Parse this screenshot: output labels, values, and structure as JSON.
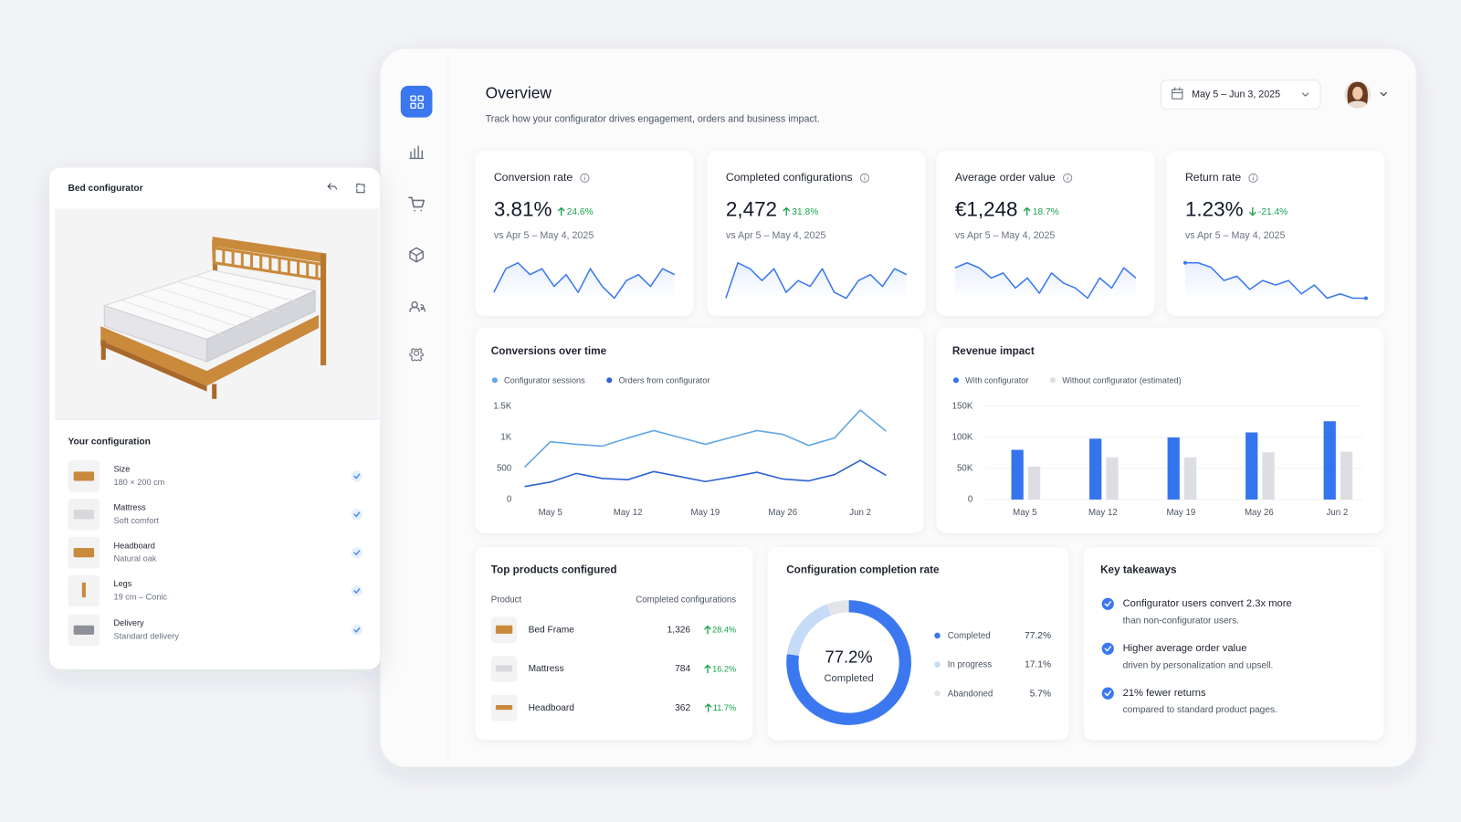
{
  "configurator": {
    "title": "Bed configurator",
    "section": "Your configuration",
    "items": [
      {
        "label": "Size",
        "value": "180 × 200 cm"
      },
      {
        "label": "Mattress",
        "value": "Soft comfort"
      },
      {
        "label": "Headboard",
        "value": "Natural oak"
      },
      {
        "label": "Legs",
        "value": "19 cm – Conic"
      },
      {
        "label": "Delivery",
        "value": "Standard delivery"
      }
    ]
  },
  "header": {
    "title": "Overview",
    "subtitle": "Track how your configurator drives engagement, orders and business impact.",
    "date_range": "May 5 – Jun 3, 2025"
  },
  "kpis": [
    {
      "label": "Conversion rate",
      "value": "3.81%",
      "change": "24.6%",
      "direction": "up",
      "comparison": "vs Apr 5 – May 4, 2025",
      "trend": [
        3,
        7,
        8,
        6,
        7,
        4,
        6,
        3,
        7,
        4,
        2,
        5,
        6,
        4,
        7,
        6
      ]
    },
    {
      "label": "Completed configurations",
      "value": "2,472",
      "change": "31.8%",
      "direction": "up",
      "comparison": "vs Apr 5 – May 4, 2025",
      "trend": [
        2,
        8,
        7,
        5,
        7,
        3,
        5,
        4,
        7,
        3,
        2,
        5,
        6,
        4,
        7,
        6
      ]
    },
    {
      "label": "Average order value",
      "value": "€1,248",
      "change": "18.7%",
      "direction": "up",
      "comparison": "vs Apr 5 – May 4, 2025",
      "trend": [
        7,
        8,
        7,
        5,
        6,
        3,
        5,
        2,
        6,
        4,
        3,
        1,
        5,
        3,
        7,
        5
      ]
    },
    {
      "label": "Return rate",
      "value": "1.23%",
      "change": "-21.4%",
      "direction": "down",
      "comparison": "vs Apr 5 – May 4, 2025",
      "trend": [
        8,
        8,
        7,
        4,
        5,
        2,
        4,
        3,
        4,
        1,
        3,
        0,
        1,
        0,
        0
      ]
    }
  ],
  "chart_data": [
    {
      "type": "line",
      "title": "Conversions over time",
      "categories": [
        null,
        "May 5",
        null,
        null,
        "May 12",
        null,
        null,
        "May 19",
        null,
        null,
        "May 26",
        null,
        null,
        "Jun 2",
        null
      ],
      "series": [
        {
          "name": "Configurator sessions",
          "color": "#62a8e5",
          "values": [
            520,
            930,
            890,
            860,
            990,
            1110,
            1000,
            890,
            1000,
            1110,
            1050,
            870,
            990,
            1440,
            1100
          ]
        },
        {
          "name": "Orders from configurator",
          "color": "#2f64d4",
          "values": [
            210,
            280,
            420,
            340,
            320,
            450,
            370,
            290,
            360,
            440,
            330,
            300,
            400,
            630,
            390
          ]
        }
      ],
      "ylim": [
        0,
        1500
      ],
      "yticks": [
        0,
        500,
        {
          "value": 1000,
          "label": "1K"
        },
        {
          "value": 1500,
          "label": "1.5K"
        }
      ],
      "grid": false
    },
    {
      "type": "bar",
      "title": "Revenue impact",
      "categories": [
        "May 5",
        "May 12",
        "May 19",
        "May 26",
        "Jun 2"
      ],
      "series": [
        {
          "name": "With configurator",
          "color": "#3574ef",
          "values": [
            80000,
            98000,
            100000,
            108000,
            126000
          ]
        },
        {
          "name": "Without configurator (estimated)",
          "color": "#dcdee3",
          "values": [
            53000,
            68000,
            68000,
            76000,
            77000
          ]
        }
      ],
      "ylim": [
        0,
        150000
      ],
      "yticks": [
        0,
        {
          "value": 50000,
          "label": "50K"
        },
        {
          "value": 100000,
          "label": "100K"
        },
        {
          "value": 150000,
          "label": "150K"
        }
      ],
      "grid": true
    },
    {
      "type": "pie",
      "title": "Configuration completion rate",
      "categories": [
        "Completed",
        "In progress",
        "Abandoned"
      ],
      "values": [
        77.2,
        17.1,
        5.7
      ],
      "value_labels": [
        "77.2%",
        "17.1%",
        "5.7%"
      ],
      "colors": [
        "#3b78f0",
        "#c5dbf7",
        "#e2e4e8"
      ]
    }
  ],
  "top_products": {
    "title": "Top products configured",
    "columns": [
      "Product",
      "Completed configurations"
    ],
    "rows": [
      [
        "Bed Frame",
        "1,326",
        "28.4%"
      ],
      [
        "Mattress",
        "784",
        "16.2%"
      ],
      [
        "Headboard",
        "362",
        "11.7%"
      ]
    ]
  },
  "takeaways": {
    "title": "Key takeaways",
    "items": [
      {
        "title": "Configurator users convert 2.3x more",
        "text": "than non-configurator users."
      },
      {
        "title": "Higher average order value",
        "text": "driven by personalization and upsell."
      },
      {
        "title": "21% fewer returns",
        "text": "compared to standard product pages."
      }
    ]
  }
}
